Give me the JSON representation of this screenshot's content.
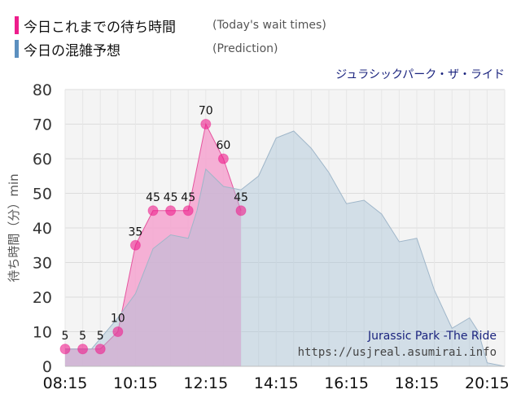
{
  "legend": {
    "items": [
      {
        "label_jp": "今日これまでの待ち時間",
        "label_en": "(Today's wait times)",
        "color": "#ee1d8c"
      },
      {
        "label_jp": "今日の混雑予想",
        "label_en": "(Prediction)",
        "color": "#5b8fbf"
      }
    ]
  },
  "chart_data": {
    "type": "area",
    "title": "ジュラシックパーク・ザ・ライド",
    "ylabel": "待ち時間（分）min",
    "xlabel": "",
    "ylim": [
      0,
      80
    ],
    "xlim": [
      "08:15",
      "20:45"
    ],
    "yticks": [
      0,
      10,
      20,
      30,
      40,
      50,
      60,
      70,
      80
    ],
    "xticks": [
      "08:15",
      "10:15",
      "12:15",
      "14:15",
      "16:15",
      "18:15",
      "20:15"
    ],
    "grid": true,
    "watermark": {
      "name": "Jurassic Park -The Ride",
      "url": "https://usjreal.asumirai.info"
    },
    "series": [
      {
        "name": "今日これまでの待ち時間",
        "style": "area-with-markers",
        "color": "#ee1d8c",
        "points": [
          {
            "x": "08:15",
            "y": 5
          },
          {
            "x": "08:45",
            "y": 5
          },
          {
            "x": "09:15",
            "y": 5
          },
          {
            "x": "09:45",
            "y": 10
          },
          {
            "x": "10:15",
            "y": 35
          },
          {
            "x": "10:45",
            "y": 45
          },
          {
            "x": "11:15",
            "y": 45
          },
          {
            "x": "11:45",
            "y": 45
          },
          {
            "x": "12:15",
            "y": 70
          },
          {
            "x": "12:45",
            "y": 60
          },
          {
            "x": "13:15",
            "y": 45
          }
        ]
      },
      {
        "name": "今日の混雑予想",
        "style": "area",
        "color": "#a9c3d8",
        "points": [
          {
            "x": "08:15",
            "y": 5
          },
          {
            "x": "09:00",
            "y": 5
          },
          {
            "x": "09:15",
            "y": 8
          },
          {
            "x": "09:45",
            "y": 14
          },
          {
            "x": "10:15",
            "y": 21
          },
          {
            "x": "10:45",
            "y": 34
          },
          {
            "x": "11:15",
            "y": 38
          },
          {
            "x": "11:45",
            "y": 37
          },
          {
            "x": "12:00",
            "y": 45
          },
          {
            "x": "12:15",
            "y": 57
          },
          {
            "x": "12:45",
            "y": 52
          },
          {
            "x": "13:15",
            "y": 51
          },
          {
            "x": "13:45",
            "y": 55
          },
          {
            "x": "14:15",
            "y": 66
          },
          {
            "x": "14:45",
            "y": 68
          },
          {
            "x": "15:15",
            "y": 63
          },
          {
            "x": "15:45",
            "y": 56
          },
          {
            "x": "16:15",
            "y": 47
          },
          {
            "x": "16:45",
            "y": 48
          },
          {
            "x": "17:15",
            "y": 44
          },
          {
            "x": "17:45",
            "y": 36
          },
          {
            "x": "18:15",
            "y": 37
          },
          {
            "x": "18:45",
            "y": 22
          },
          {
            "x": "19:15",
            "y": 11
          },
          {
            "x": "19:45",
            "y": 14
          },
          {
            "x": "20:00",
            "y": 10
          },
          {
            "x": "20:15",
            "y": 1
          },
          {
            "x": "20:45",
            "y": 0
          }
        ]
      }
    ]
  }
}
